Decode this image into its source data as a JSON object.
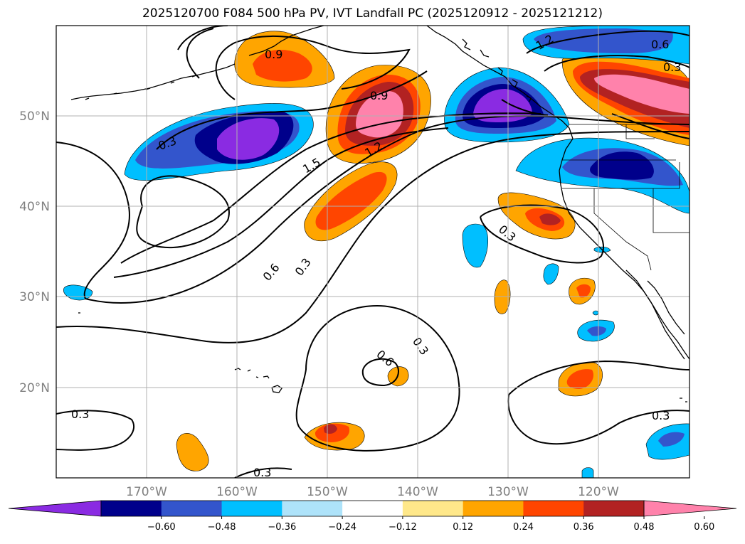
{
  "title": "2025120700 F084 500 hPa PV, IVT Landfall PC (2025120912 - 2025121212)",
  "axes": {
    "x_ticks": [
      "170°W",
      "160°W",
      "150°W",
      "140°W",
      "130°W",
      "120°W"
    ],
    "y_ticks": [
      "50°N",
      "40°N",
      "30°N",
      "20°N"
    ]
  },
  "colorbar": {
    "colors": [
      "#8a2be2",
      "#00008b",
      "#3355cc",
      "#00bfff",
      "#aee3fa",
      "#ffffff",
      "#ffe88a",
      "#ffa500",
      "#ff4500",
      "#b22222",
      "#ff82ab"
    ],
    "ticks": [
      "−0.60",
      "−0.48",
      "−0.36",
      "−0.24",
      "−0.12",
      "0.12",
      "0.24",
      "0.36",
      "0.48",
      "0.60"
    ]
  },
  "contour_labels": [
    "0.9",
    "1.2",
    "0.6",
    "0.3",
    "0.3",
    "0.9",
    "1.2",
    "1.5",
    "0.3",
    "0.6",
    "0.3",
    "0.3",
    "0.6",
    "0.3",
    "0.3",
    "0.3",
    "0.3"
  ],
  "colors": {
    "pos_light": "#ffa500",
    "pos_mid": "#ff4500",
    "pos_dark": "#b22222",
    "pos_max": "#ff82ab",
    "neg_light": "#00bfff",
    "neg_mid": "#3355cc",
    "neg_dark": "#00008b",
    "neg_max": "#8a2be2"
  }
}
